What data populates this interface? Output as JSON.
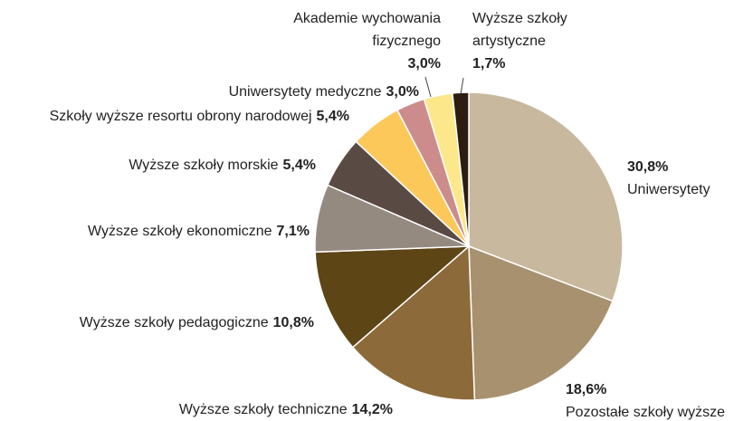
{
  "chart_data": {
    "type": "pie",
    "categories": [
      "Uniwersytety",
      "Pozostałe szkoły wyższe",
      "Wyższe szkoły techniczne",
      "Wyższe szkoły pedagogiczne",
      "Wyższe szkoły ekonomiczne",
      "Wyższe szkoły morskie",
      "Szkoły wyższe resortu obrony narodowej",
      "Uniwersytety medyczne",
      "Akademie wychowania fizycznego",
      "Wyższe szkoły artystyczne"
    ],
    "values": [
      30.8,
      18.6,
      14.2,
      10.8,
      7.1,
      5.4,
      5.4,
      3.0,
      3.0,
      1.7
    ],
    "value_labels": [
      "30,8%",
      "18,6%",
      "14,2%",
      "10,8%",
      "7,1%",
      "5,4%",
      "5,4%",
      "3,0%",
      "3,0%",
      "1,7%"
    ],
    "colors": [
      "#c8b89e",
      "#a8916e",
      "#8c6a3a",
      "#5e4516",
      "#958a80",
      "#5a4a44",
      "#fcc85a",
      "#cc8c8c",
      "#fce88a",
      "#2d1c10"
    ]
  }
}
